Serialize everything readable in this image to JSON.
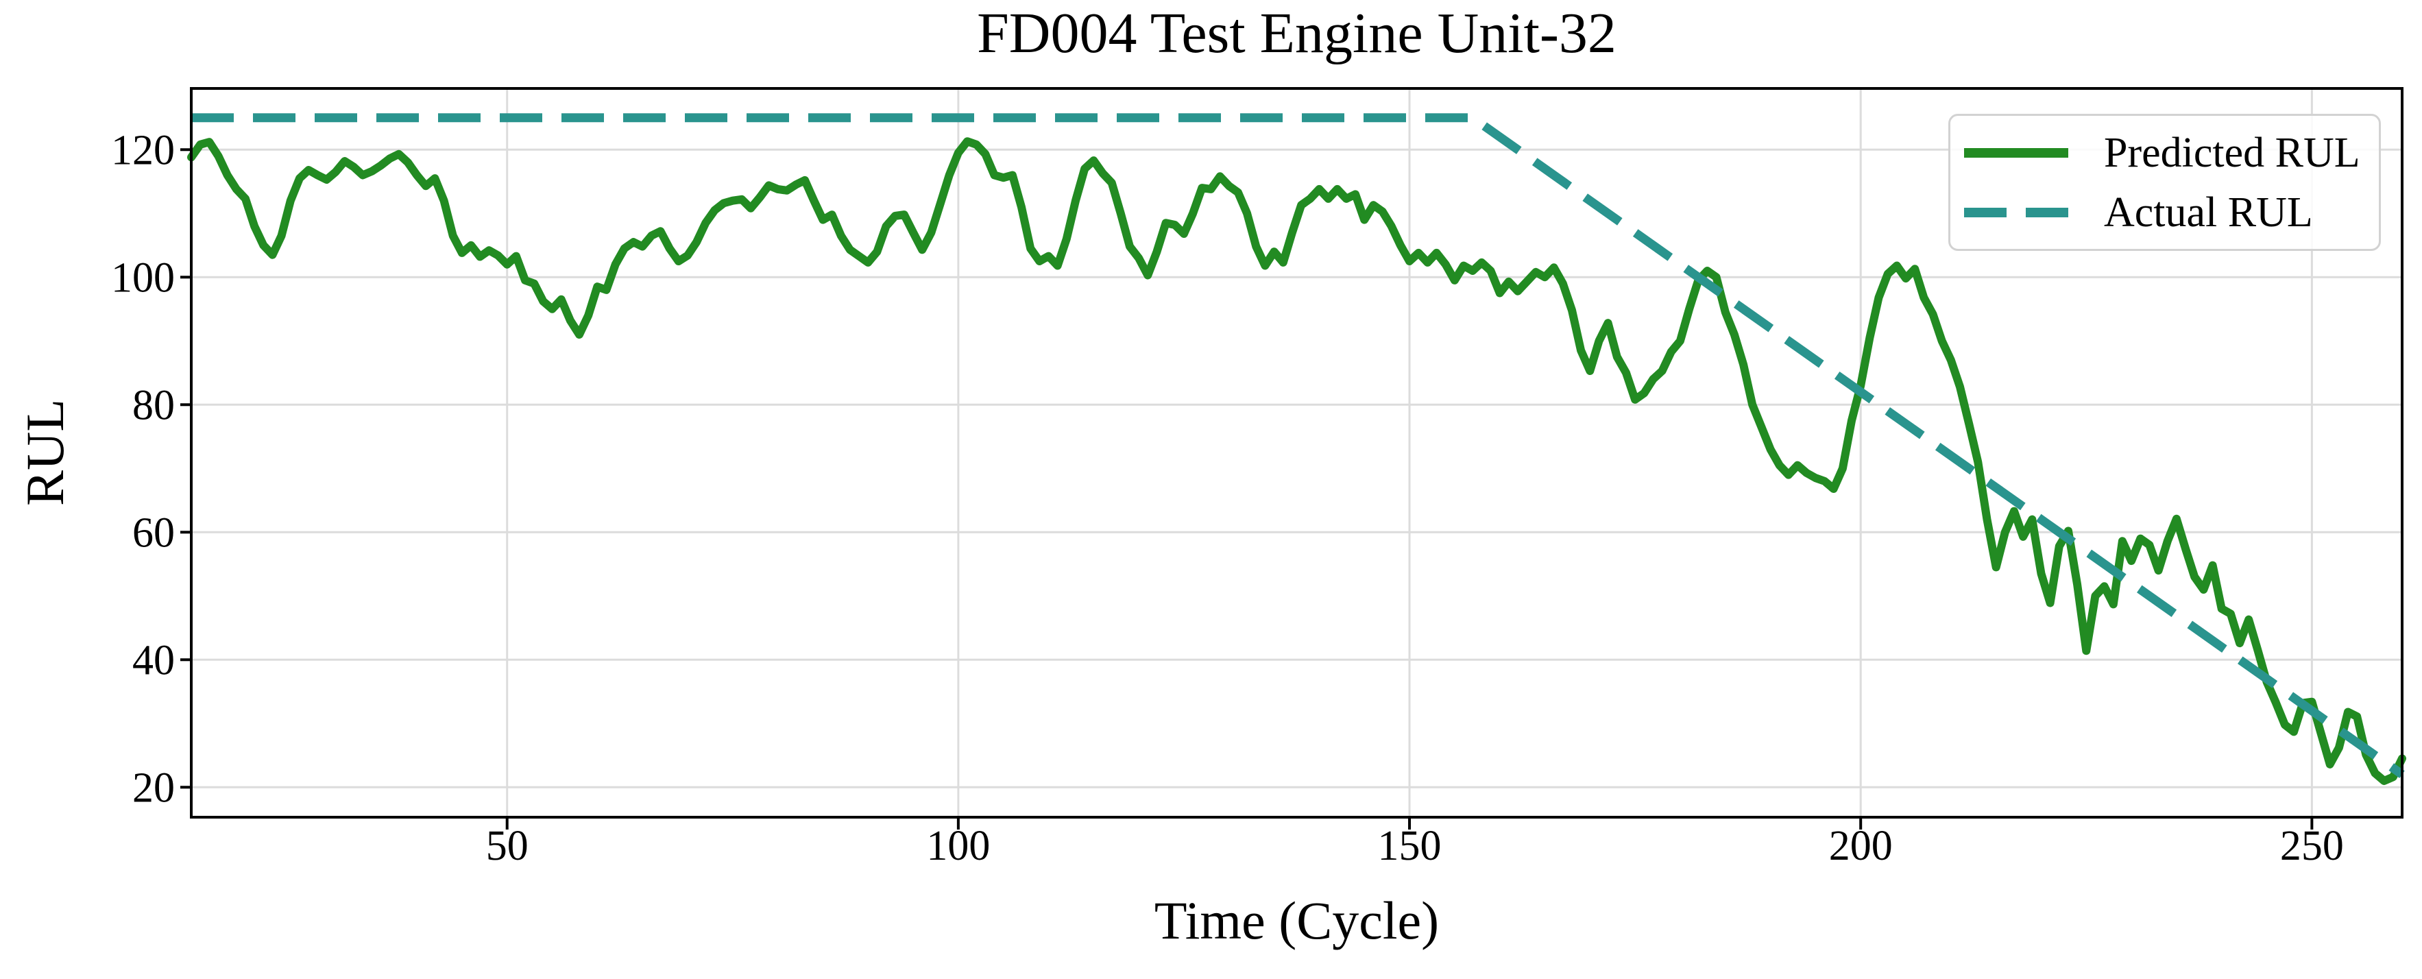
{
  "title": "FD004 Test Engine Unit-32",
  "colors": {
    "predicted_line": "#228B22",
    "actual_line": "#2a948e",
    "grid": "#dcdcdc",
    "spine": "#000000",
    "background": "#ffffff",
    "legend_border": "#d2d2d2"
  },
  "legend": {
    "position": "upper right",
    "entries": [
      {
        "label": "Predicted RUL",
        "style": "solid",
        "color": "#228B22"
      },
      {
        "label": "Actual RUL",
        "style": "dashed",
        "color": "#2a948e"
      }
    ]
  },
  "chart_data": {
    "type": "line",
    "title": "FD004 Test Engine Unit-32",
    "xlabel": "Time (Cycle)",
    "ylabel": "RUL",
    "xlim": [
      15,
      260
    ],
    "ylim": [
      15.3,
      129.6
    ],
    "x_ticks": [
      50,
      100,
      150,
      200,
      250
    ],
    "y_ticks": [
      20,
      40,
      60,
      80,
      100,
      120
    ],
    "grid": true,
    "legend_position": "upper right",
    "series": [
      {
        "name": "Predicted RUL",
        "color": "#228B22",
        "style": "solid",
        "line_width": 12,
        "points": [
          [
            15,
            118.8
          ],
          [
            16,
            120.8
          ],
          [
            17,
            121.2
          ],
          [
            18,
            119
          ],
          [
            19,
            116
          ],
          [
            20,
            113.8
          ],
          [
            21,
            112.3
          ],
          [
            22,
            108
          ],
          [
            23,
            105
          ],
          [
            24,
            103.5
          ],
          [
            25,
            106.5
          ],
          [
            26,
            112
          ],
          [
            27,
            115.5
          ],
          [
            28,
            116.8
          ],
          [
            29,
            116
          ],
          [
            30,
            115.3
          ],
          [
            31,
            116.5
          ],
          [
            32,
            118.2
          ],
          [
            33,
            117.3
          ],
          [
            34,
            116
          ],
          [
            35,
            116.6
          ],
          [
            36,
            117.5
          ],
          [
            37,
            118.6
          ],
          [
            38,
            119.3
          ],
          [
            39,
            118
          ],
          [
            40,
            116
          ],
          [
            41,
            114.3
          ],
          [
            42,
            115.5
          ],
          [
            43,
            112
          ],
          [
            44,
            106.5
          ],
          [
            45,
            103.8
          ],
          [
            46,
            105
          ],
          [
            47,
            103.2
          ],
          [
            48,
            104.2
          ],
          [
            49,
            103.4
          ],
          [
            50,
            102
          ],
          [
            51,
            103.3
          ],
          [
            52,
            99.5
          ],
          [
            53,
            99
          ],
          [
            54,
            96.2
          ],
          [
            55,
            95
          ],
          [
            56,
            96.5
          ],
          [
            57,
            93.2
          ],
          [
            58,
            91
          ],
          [
            59,
            94
          ],
          [
            60,
            98.5
          ],
          [
            61,
            98
          ],
          [
            62,
            102
          ],
          [
            63,
            104.5
          ],
          [
            64,
            105.5
          ],
          [
            65,
            104.8
          ],
          [
            66,
            106.5
          ],
          [
            67,
            107.2
          ],
          [
            68,
            104.5
          ],
          [
            69,
            102.5
          ],
          [
            70,
            103.4
          ],
          [
            71,
            105.5
          ],
          [
            72,
            108.5
          ],
          [
            73,
            110.5
          ],
          [
            74,
            111.6
          ],
          [
            75,
            112
          ],
          [
            76,
            112.2
          ],
          [
            77,
            110.8
          ],
          [
            78,
            112.5
          ],
          [
            79,
            114.4
          ],
          [
            80,
            113.8
          ],
          [
            81,
            113.6
          ],
          [
            82,
            114.5
          ],
          [
            83,
            115.2
          ],
          [
            84,
            112
          ],
          [
            85,
            109
          ],
          [
            86,
            109.8
          ],
          [
            87,
            106.5
          ],
          [
            88,
            104.3
          ],
          [
            89,
            103.3
          ],
          [
            90,
            102.3
          ],
          [
            91,
            104
          ],
          [
            92,
            108
          ],
          [
            93,
            109.6
          ],
          [
            94,
            109.8
          ],
          [
            95,
            107
          ],
          [
            96,
            104.3
          ],
          [
            97,
            107
          ],
          [
            98,
            111.5
          ],
          [
            99,
            116
          ],
          [
            100,
            119.5
          ],
          [
            101,
            121.3
          ],
          [
            102,
            120.8
          ],
          [
            103,
            119.3
          ],
          [
            104,
            116
          ],
          [
            105,
            115.6
          ],
          [
            106,
            116
          ],
          [
            107,
            111
          ],
          [
            108,
            104.5
          ],
          [
            109,
            102.5
          ],
          [
            110,
            103.3
          ],
          [
            111,
            101.8
          ],
          [
            112,
            106
          ],
          [
            113,
            112
          ],
          [
            114,
            117
          ],
          [
            115,
            118.3
          ],
          [
            116,
            116.3
          ],
          [
            117,
            114.8
          ],
          [
            118,
            110
          ],
          [
            119,
            104.8
          ],
          [
            120,
            103
          ],
          [
            121,
            100.3
          ],
          [
            122,
            104
          ],
          [
            123,
            108.5
          ],
          [
            124,
            108.2
          ],
          [
            125,
            106.8
          ],
          [
            126,
            110
          ],
          [
            127,
            114
          ],
          [
            128,
            113.8
          ],
          [
            129,
            115.8
          ],
          [
            130,
            114.3
          ],
          [
            131,
            113.3
          ],
          [
            132,
            110
          ],
          [
            133,
            104.8
          ],
          [
            134,
            101.8
          ],
          [
            135,
            104
          ],
          [
            136,
            102.3
          ],
          [
            137,
            107
          ],
          [
            138,
            111.3
          ],
          [
            139,
            112.3
          ],
          [
            140,
            113.8
          ],
          [
            141,
            112.3
          ],
          [
            142,
            113.8
          ],
          [
            143,
            112.3
          ],
          [
            144,
            113
          ],
          [
            145,
            109
          ],
          [
            146,
            111.3
          ],
          [
            147,
            110.3
          ],
          [
            148,
            108
          ],
          [
            149,
            105
          ],
          [
            150,
            102.5
          ],
          [
            151,
            103.8
          ],
          [
            152,
            102.3
          ],
          [
            153,
            103.8
          ],
          [
            154,
            102
          ],
          [
            155,
            99.5
          ],
          [
            156,
            101.8
          ],
          [
            157,
            101
          ],
          [
            158,
            102.3
          ],
          [
            159,
            101
          ],
          [
            160,
            97.5
          ],
          [
            161,
            99.3
          ],
          [
            162,
            97.8
          ],
          [
            163,
            99.3
          ],
          [
            164,
            100.8
          ],
          [
            165,
            100
          ],
          [
            166,
            101.5
          ],
          [
            167,
            99
          ],
          [
            168,
            94.8
          ],
          [
            169,
            88.5
          ],
          [
            170,
            85.3
          ],
          [
            171,
            90
          ],
          [
            172,
            92.8
          ],
          [
            173,
            87.5
          ],
          [
            174,
            85
          ],
          [
            175,
            80.8
          ],
          [
            176,
            81.8
          ],
          [
            177,
            84
          ],
          [
            178,
            85.3
          ],
          [
            179,
            88.3
          ],
          [
            180,
            90
          ],
          [
            181,
            95
          ],
          [
            182,
            99.5
          ],
          [
            183,
            101
          ],
          [
            184,
            100
          ],
          [
            185,
            94.5
          ],
          [
            186,
            91
          ],
          [
            187,
            86.3
          ],
          [
            188,
            80
          ],
          [
            189,
            76.5
          ],
          [
            190,
            73
          ],
          [
            191,
            70.5
          ],
          [
            192,
            69
          ],
          [
            193,
            70.5
          ],
          [
            194,
            69.3
          ],
          [
            195,
            68.5
          ],
          [
            196,
            68
          ],
          [
            197,
            66.8
          ],
          [
            198,
            70
          ],
          [
            199,
            77.5
          ],
          [
            200,
            83
          ],
          [
            201,
            90.5
          ],
          [
            202,
            96.8
          ],
          [
            203,
            100.5
          ],
          [
            204,
            101.8
          ],
          [
            205,
            99.8
          ],
          [
            206,
            101.3
          ],
          [
            207,
            96.8
          ],
          [
            208,
            94.2
          ],
          [
            209,
            90
          ],
          [
            210,
            87
          ],
          [
            211,
            82.8
          ],
          [
            212,
            77
          ],
          [
            213,
            71
          ],
          [
            214,
            62
          ],
          [
            215,
            54.5
          ],
          [
            216,
            60
          ],
          [
            217,
            63.3
          ],
          [
            218,
            59.3
          ],
          [
            219,
            62
          ],
          [
            220,
            53.5
          ],
          [
            221,
            48.9
          ],
          [
            222,
            57.8
          ],
          [
            223,
            60.2
          ],
          [
            224,
            51.8
          ],
          [
            225,
            41.4
          ],
          [
            226,
            50
          ],
          [
            227,
            51.5
          ],
          [
            228,
            48.7
          ],
          [
            229,
            58.6
          ],
          [
            230,
            55.5
          ],
          [
            231,
            59
          ],
          [
            232,
            58
          ],
          [
            233,
            54
          ],
          [
            234,
            58.6
          ],
          [
            235,
            62.1
          ],
          [
            236,
            57.4
          ],
          [
            237,
            53
          ],
          [
            238,
            51
          ],
          [
            239,
            54.8
          ],
          [
            240,
            48
          ],
          [
            241,
            47.2
          ],
          [
            242,
            42.6
          ],
          [
            243,
            46.3
          ],
          [
            244,
            41.5
          ],
          [
            245,
            36.5
          ],
          [
            246,
            33.3
          ],
          [
            247,
            29.8
          ],
          [
            248,
            28.7
          ],
          [
            249,
            33.2
          ],
          [
            250,
            33.4
          ],
          [
            251,
            28.5
          ],
          [
            252,
            23.6
          ],
          [
            253,
            26.2
          ],
          [
            254,
            31.8
          ],
          [
            255,
            31.1
          ],
          [
            256,
            25.1
          ],
          [
            257,
            22.2
          ],
          [
            258,
            21
          ],
          [
            259,
            21.6
          ],
          [
            260,
            24.5
          ]
        ]
      },
      {
        "name": "Actual RUL",
        "color": "#2a948e",
        "style": "dashed",
        "line_width": 13,
        "points": [
          [
            15,
            125
          ],
          [
            157,
            125
          ],
          [
            260,
            22
          ]
        ]
      }
    ]
  }
}
